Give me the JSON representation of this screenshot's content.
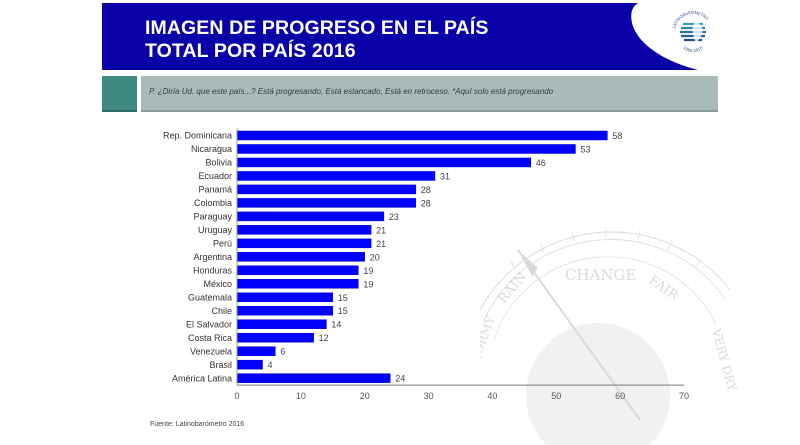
{
  "header": {
    "title_line1": "IMAGEN DE PROGRESO EN EL PAÍS",
    "title_line2": "TOTAL POR PAÍS 2016",
    "logo_text_top": "LATINOBARÓMETRO",
    "logo_text_bottom": "1995-2015",
    "logo_icon": "latinobarometro-globe-logo"
  },
  "question": "P. ¿Diría Ud. que este país...? Está progresando, Está estancado, Está en retroceso. *Aquí solo está progresando",
  "source": "Fuente: Latinobarómetro 2016",
  "background_image": {
    "icon": "barometer-dial-illustration",
    "words": [
      "STORMY",
      "RAIN",
      "CHANGE",
      "FAIR",
      "VERY DRY"
    ]
  },
  "colors": {
    "header_bg": "#0a00a8",
    "bar": "#0000ff",
    "teal": "#3f8a80",
    "band": "#a9bbb9"
  },
  "chart_data": {
    "type": "bar",
    "orientation": "horizontal",
    "title": "IMAGEN DE PROGRESO EN EL PAÍS TOTAL POR PAÍS 2016",
    "xlabel": "",
    "ylabel": "",
    "categories": [
      "Rep. Dominicana",
      "Nicaragua",
      "Bolivia",
      "Ecuador",
      "Panamá",
      "Colombia",
      "Paraguay",
      "Uruguay",
      "Perú",
      "Argentina",
      "Honduras",
      "México",
      "Guatemala",
      "Chile",
      "El Salvador",
      "Costa Rica",
      "Venezuela",
      "Brasil",
      "América Latina"
    ],
    "values": [
      58,
      53,
      46,
      31,
      28,
      28,
      23,
      21,
      21,
      20,
      19,
      19,
      15,
      15,
      14,
      12,
      6,
      4,
      24
    ],
    "xlim": [
      0,
      70
    ],
    "xticks": [
      "0",
      "10",
      "20",
      "30",
      "40",
      "50",
      "60",
      "70"
    ],
    "grid": false,
    "legend": "none"
  }
}
